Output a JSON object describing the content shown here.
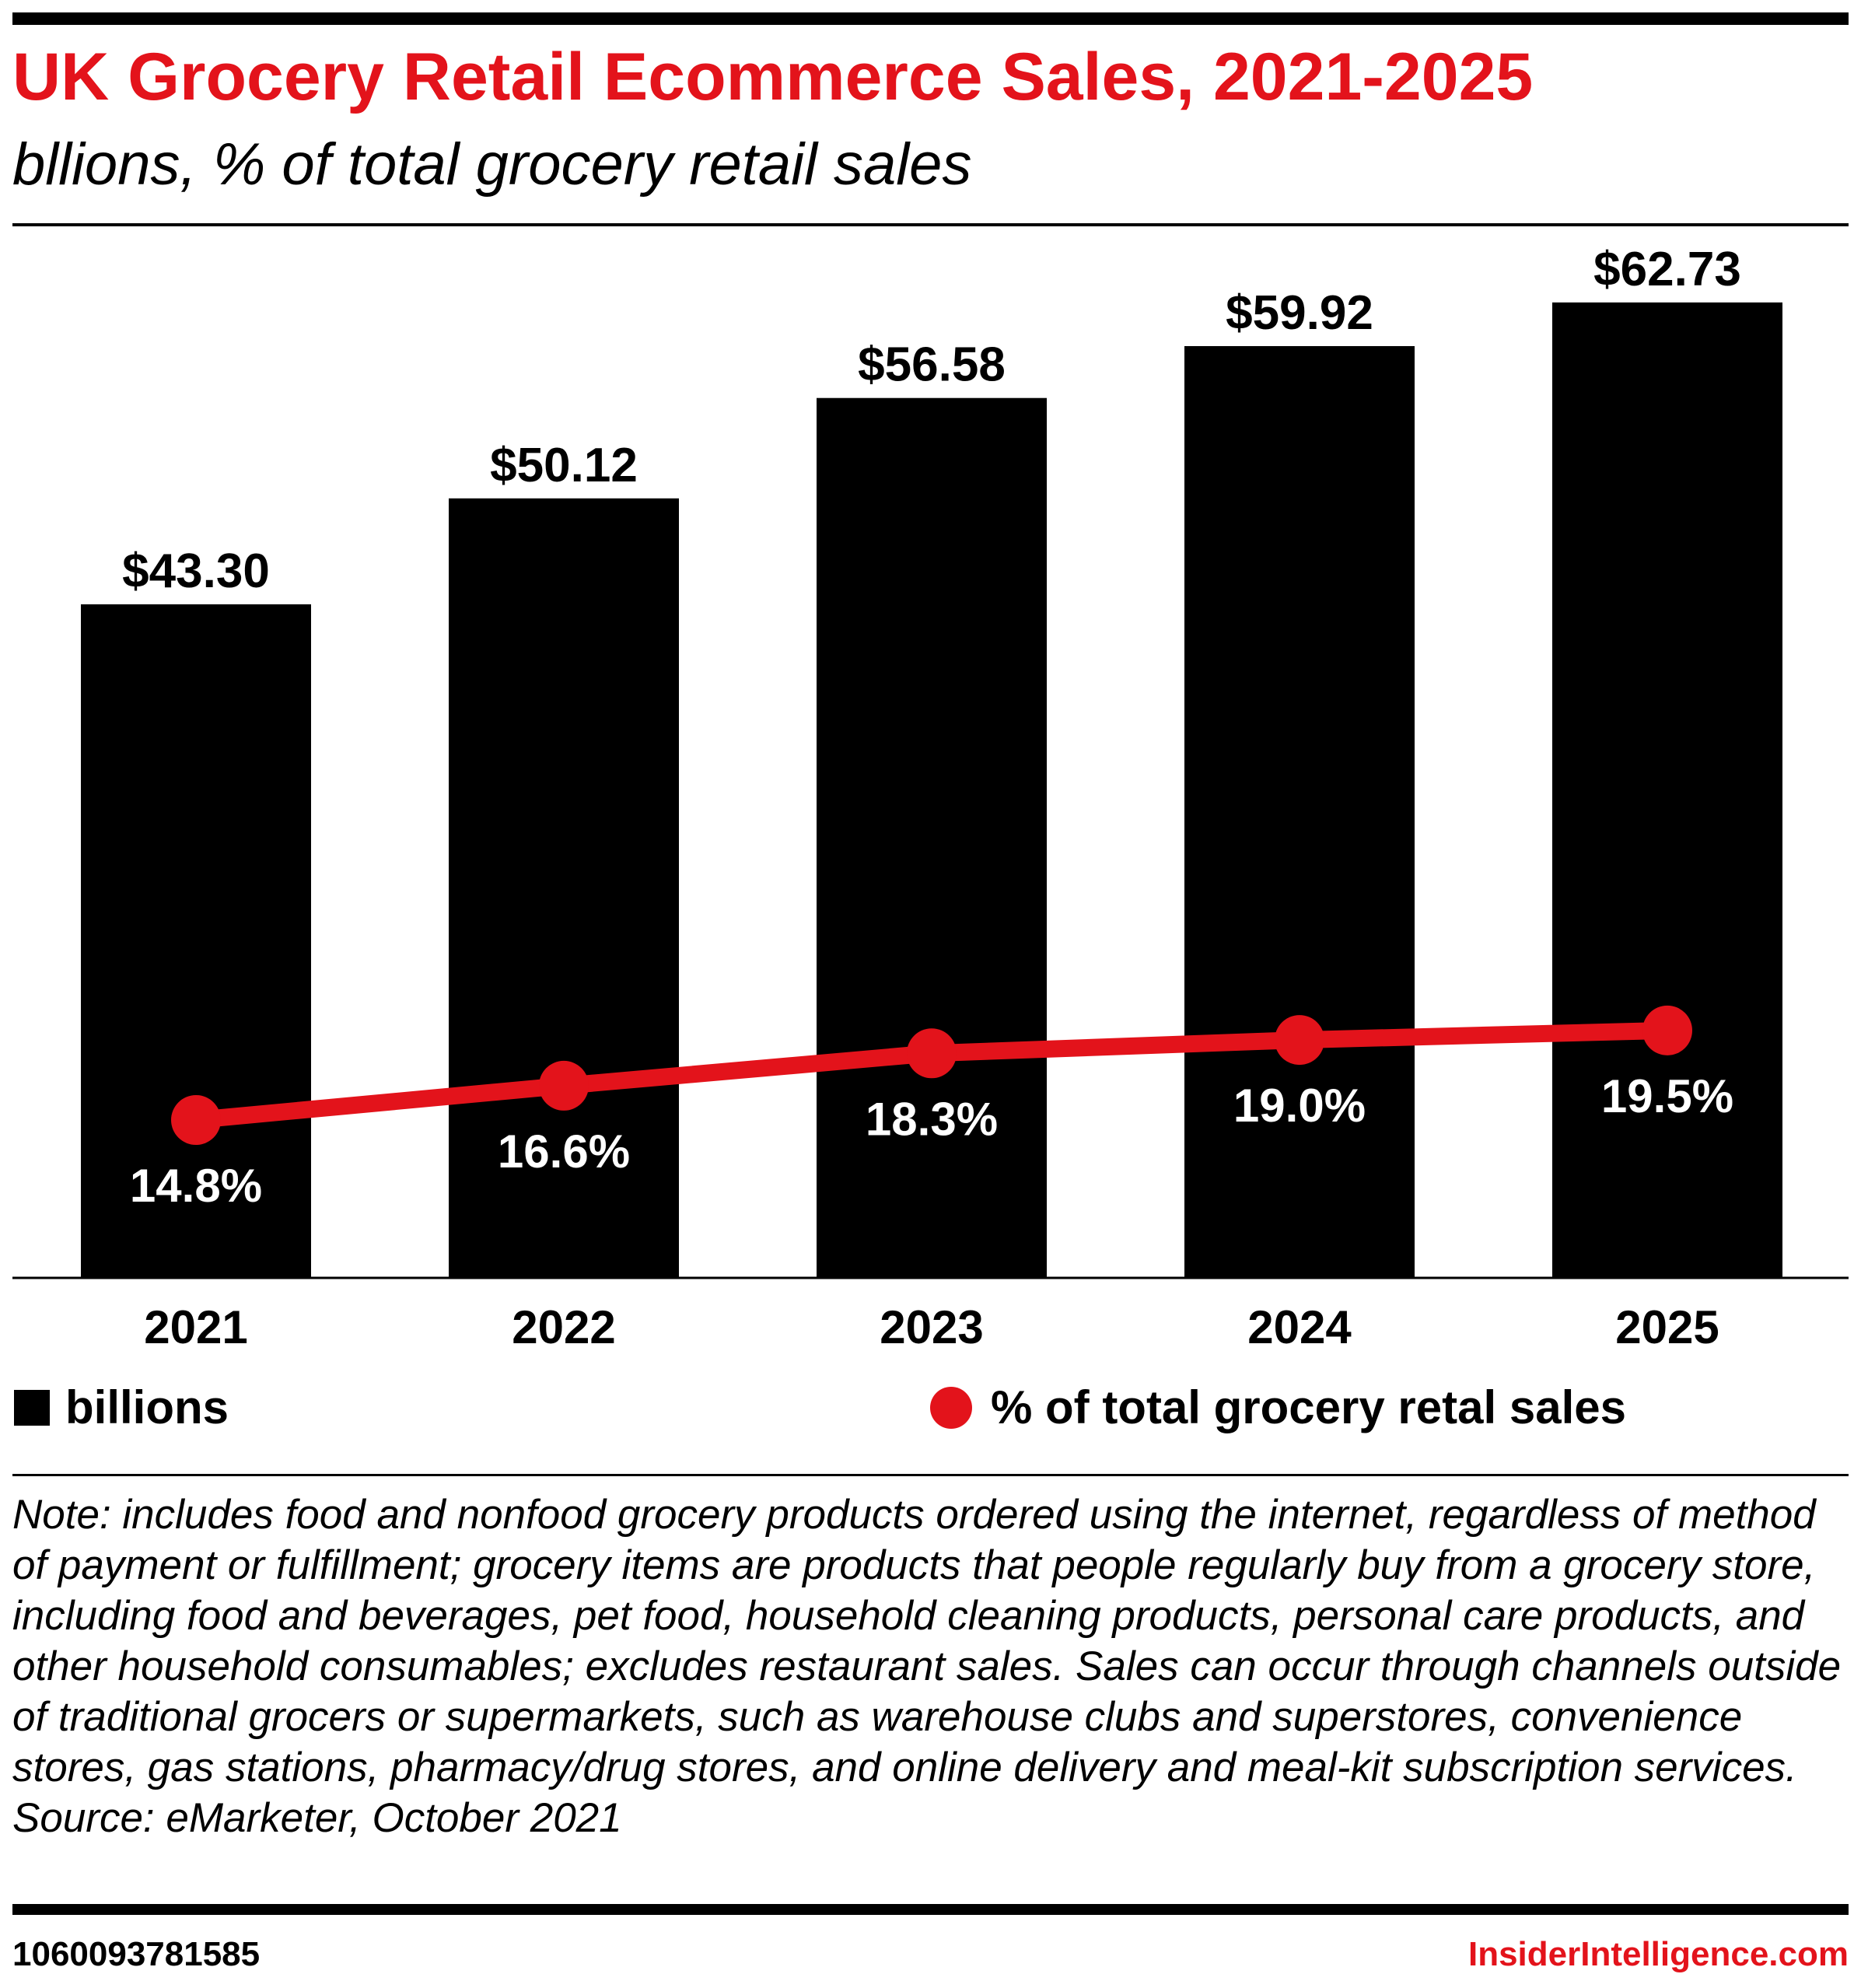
{
  "title": "UK Grocery Retail Ecommerce Sales, 2021-2025",
  "subtitle": "bllions, % of total grocery retail sales",
  "colors": {
    "accent": "#e3131b",
    "bars": "#000000",
    "percent_labels": "#ffffff"
  },
  "chart_data": {
    "type": "bar",
    "categories": [
      "2021",
      "2022",
      "2023",
      "2024",
      "2025"
    ],
    "series": [
      {
        "name": "billions",
        "type": "bar",
        "values": [
          43.3,
          50.12,
          56.58,
          59.92,
          62.73
        ],
        "labels": [
          "$43.30",
          "$50.12",
          "$56.58",
          "$59.92",
          "$62.73"
        ]
      },
      {
        "name": "% of total grocery retal sales",
        "type": "line",
        "values": [
          14.8,
          16.6,
          18.3,
          19.0,
          19.5
        ],
        "labels": [
          "14.8%",
          "16.6%",
          "18.3%",
          "19.0%",
          "19.5%"
        ]
      }
    ],
    "legend": "bottom",
    "grid": false
  },
  "legend": {
    "bars_label": "billions",
    "line_label": "% of total grocery retal sales"
  },
  "note": [
    "Note: includes food and nonfood grocery products ordered using the internet, regardless of method of payment or fulfillment; grocery items are products that people regularly buy from a grocery store, including food and beverages, pet food, household cleaning products, personal care products, and other household consumables; excludes restaurant sales. Sales can occur through channels outside of traditional grocers or supermarkets, such as warehouse clubs and superstores, convenience stores, gas stations, pharmacy/drug stores, and online delivery and meal-kit subscription services.",
    "Source: eMarketer, October 2021"
  ],
  "footer": {
    "id": "1060093781585",
    "brand": "InsiderIntelligence.com"
  }
}
